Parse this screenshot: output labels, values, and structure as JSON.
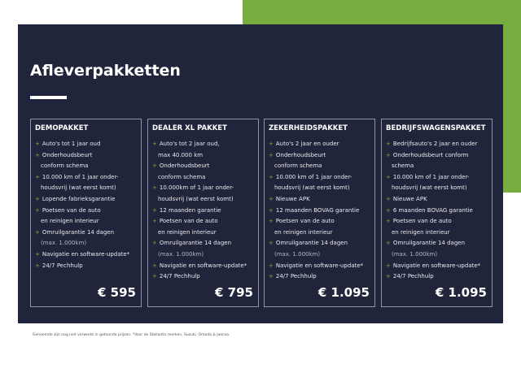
{
  "title": "Afleverpakketten",
  "colors": {
    "panel": "#20253b",
    "accent": "#77ad3f"
  },
  "packages": [
    {
      "name": "DEMOPAKKET",
      "price": "€ 595",
      "lines": [
        {
          "t": "Auto's tot 1 jaar oud",
          "b": true
        },
        {
          "t": "Onderhoudsbeurt",
          "b": true
        },
        {
          "t": "conform schema"
        },
        {
          "t": "10.000 km of 1 jaar onder-",
          "b": true
        },
        {
          "t": "houdsvrij (wat eerst komt)"
        },
        {
          "t": "Lopende fabrieksgarantie",
          "b": true
        },
        {
          "t": "Poetsen van de auto",
          "b": true
        },
        {
          "t": "en reinigen interieur"
        },
        {
          "t": "Omruilgarantie 14 dagen",
          "b": true
        },
        {
          "t": "(max. 1.000km)",
          "m": true
        },
        {
          "t": "Navigatie en software-update*",
          "b": true
        },
        {
          "t": "24/7 Pechhulp",
          "b": true
        }
      ]
    },
    {
      "name": "DEALER XL PAKKET",
      "price": "€ 795",
      "lines": [
        {
          "t": "Auto's tot 2 jaar oud,",
          "b": true
        },
        {
          "t": "max 40.000 km"
        },
        {
          "t": "Onderhoudsbeurt",
          "b": true
        },
        {
          "t": "conform schema"
        },
        {
          "t": "10.000km of 1 jaar onder-",
          "b": true
        },
        {
          "t": "houdsvrij (wat eerst komt)"
        },
        {
          "t": "12 maanden garantie",
          "b": true
        },
        {
          "t": "Poetsen van de auto",
          "b": true
        },
        {
          "t": "en reinigen interieur"
        },
        {
          "t": "Omruilgarantie 14 dagen",
          "b": true
        },
        {
          "t": "(max. 1.000km)",
          "m": true
        },
        {
          "t": "Navigatie en software-update*",
          "b": true
        },
        {
          "t": "24/7 Pechhulp",
          "b": true
        }
      ]
    },
    {
      "name": "ZEKERHEIDSPAKKET",
      "price": "€ 1.095",
      "lines": [
        {
          "t": "Auto's 2 jaar en ouder",
          "b": true
        },
        {
          "t": "Onderhoudsbeurt",
          "b": true
        },
        {
          "t": "conform schema"
        },
        {
          "t": "10.000 km of 1 jaar onder-",
          "b": true
        },
        {
          "t": "houdsvrij (wat eerst komt)"
        },
        {
          "t": "Nieuwe APK",
          "b": true
        },
        {
          "t": "12 maanden BOVAG garantie",
          "b": true
        },
        {
          "t": "Poetsen van de auto",
          "b": true
        },
        {
          "t": "en reinigen interieur"
        },
        {
          "t": "Omruilgarantie 14 dagen",
          "b": true
        },
        {
          "t": "(max. 1.000km)",
          "m": true
        },
        {
          "t": "Navigatie en software-update*",
          "b": true
        },
        {
          "t": "24/7 Pechhulp",
          "b": true
        }
      ]
    },
    {
      "name": "BEDRIJFSWAGENSPAKKET",
      "price": "€ 1.095",
      "lines": [
        {
          "t": "Bedrijfsauto's 2 jaar en ouder",
          "b": true
        },
        {
          "t": "Onderhoudsbeurt conform",
          "b": true
        },
        {
          "t": "schema"
        },
        {
          "t": "10.000 km of 1 jaar onder-",
          "b": true
        },
        {
          "t": "houdsvrij (wat eerst komt)"
        },
        {
          "t": "Nieuwe APK",
          "b": true
        },
        {
          "t": "6 maanden BOVAG garantie",
          "b": true
        },
        {
          "t": "Poetsen van de auto",
          "b": true
        },
        {
          "t": "en reinigen interieur"
        },
        {
          "t": "Omruilgarantie 14 dagen",
          "b": true
        },
        {
          "t": "(max. 1.000km)",
          "m": true
        },
        {
          "t": "Navigatie en software-update*",
          "b": true
        },
        {
          "t": "24/7 Pechhulp",
          "b": true
        }
      ]
    }
  ],
  "bullet": "+",
  "footnote": "Genoemde zijn nog niet verwerkt in getoonde prijzen. *Voor de Stellantis merken, Suzuki, Omoda & Jaecoo."
}
